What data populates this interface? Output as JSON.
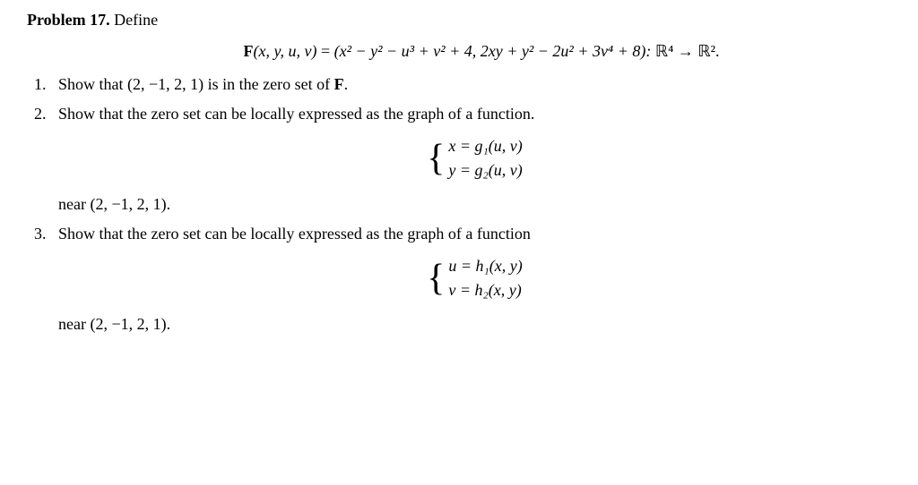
{
  "header": {
    "problem_label": "Problem 17.",
    "define": "Define"
  },
  "main_equation": {
    "lhs": "F",
    "args": "(x, y, u, v)",
    "eq": " = ",
    "rhs": "(x² − y² − u³ + v² + 4, 2xy + y² − 2u² + 3v⁴ + 8): ",
    "domain": "ℝ⁴ → ℝ²."
  },
  "items": [
    {
      "number": "1.",
      "text_pre": "Show that (2, −1, 2, 1) is in the zero set of ",
      "bold_F": "F",
      "text_post": "."
    },
    {
      "number": "2.",
      "text": "Show that the zero set can be locally expressed as the graph of a function.",
      "brace_line1": "x = g₁(u, v)",
      "brace_line2": "y = g₂(u, v)",
      "near": "near (2, −1, 2, 1)."
    },
    {
      "number": "3.",
      "text": "Show that the zero set can be locally expressed as the graph of a function",
      "brace_line1": "u = h₁(x, y)",
      "brace_line2": "v = h₂(x, y)",
      "near": "near (2, −1, 2, 1)."
    }
  ]
}
